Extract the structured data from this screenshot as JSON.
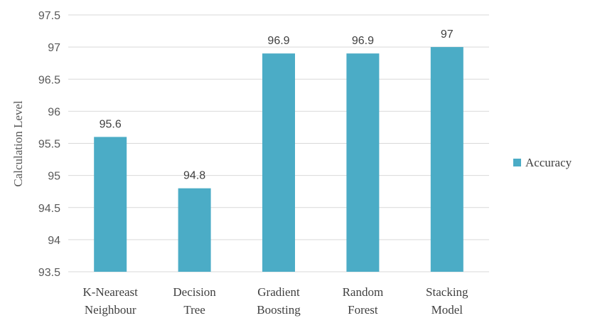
{
  "chart_data": {
    "type": "bar",
    "categories": [
      [
        "K-Neareast",
        "Neighbour"
      ],
      [
        "Decision",
        "Tree"
      ],
      [
        "Gradient",
        "Boosting"
      ],
      [
        "Random",
        "Forest"
      ],
      [
        "Stacking",
        "Model"
      ]
    ],
    "series": [
      {
        "name": "Accuracy",
        "values": [
          95.6,
          94.8,
          96.9,
          96.9,
          97
        ],
        "color": "#4bacc6"
      }
    ],
    "data_labels": [
      "95.6",
      "94.8",
      "96.9",
      "96.9",
      "97"
    ],
    "title": "",
    "xlabel": "",
    "ylabel": "Calculation Level",
    "ylim": [
      93.5,
      97.5
    ],
    "yticks": [
      93.5,
      94,
      94.5,
      95,
      95.5,
      96,
      96.5,
      97,
      97.5
    ],
    "ytick_labels": [
      "93.5",
      "94",
      "94.5",
      "95",
      "95.5",
      "96",
      "96.5",
      "97",
      "97.5"
    ],
    "grid": true,
    "legend_position": "right",
    "gridline_color": "#d9d9d9"
  }
}
